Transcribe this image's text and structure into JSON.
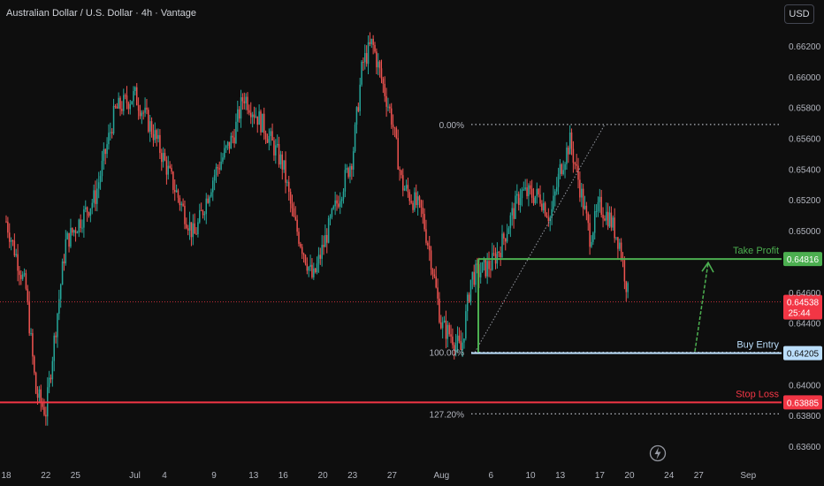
{
  "header": {
    "title": "Australian Dollar / U.S. Dollar · 4h · Vantage",
    "currency_label": "USD"
  },
  "colors": {
    "background": "#0e0e0e",
    "bull_candle": "#26a69a",
    "bear_candle": "#ef5350",
    "take_profit": "#4caf50",
    "stop_loss": "#f23645",
    "buy_entry": "#bbdefb",
    "current_price": "#f23645"
  },
  "chart_data": {
    "type": "candlestick",
    "ylim": [
      0.6353,
      0.6636
    ],
    "price_ticks": [
      "0.66200",
      "0.66000",
      "0.65800",
      "0.65600",
      "0.65400",
      "0.65200",
      "0.65000",
      "0.64600",
      "0.64400",
      "0.64000",
      "0.63800",
      "0.63600"
    ],
    "x_ticks": [
      "18",
      "22",
      "25",
      "Jul",
      "4",
      "9",
      "13",
      "16",
      "20",
      "23",
      "27",
      "Aug",
      "6",
      "10",
      "13",
      "17",
      "20",
      "24",
      "27",
      "Sep"
    ],
    "path_points": [
      [
        "Jun 18",
        0.6506
      ],
      [
        "Jun 20",
        0.6462
      ],
      [
        "Jun 21",
        0.6395
      ],
      [
        "Jun 22",
        0.6382
      ],
      [
        "Jun 24",
        0.6492
      ],
      [
        "Jun 27",
        0.6522
      ],
      [
        "Jun 29",
        0.6578
      ],
      [
        "Jul 1",
        0.6588
      ],
      [
        "Jul 3",
        0.6562
      ],
      [
        "Jul 5",
        0.6528
      ],
      [
        "Jul 7",
        0.6496
      ],
      [
        "Jul 9",
        0.6536
      ],
      [
        "Jul 11",
        0.6562
      ],
      [
        "Jul 12",
        0.6588
      ],
      [
        "Jul 14",
        0.6568
      ],
      [
        "Jul 16",
        0.6542
      ],
      [
        "Jul 17",
        0.6508
      ],
      [
        "Jul 19",
        0.6468
      ],
      [
        "Jul 21",
        0.651
      ],
      [
        "Jul 23",
        0.6548
      ],
      [
        "Jul 24",
        0.6608
      ],
      [
        "Jul 25",
        0.6622
      ],
      [
        "Jul 27",
        0.6572
      ],
      [
        "Jul 28",
        0.653
      ],
      [
        "Jul 30",
        0.6512
      ],
      [
        "Jul 31",
        0.648
      ],
      [
        "Aug 1",
        0.6438
      ],
      [
        "Aug 2",
        0.6432
      ],
      [
        "Aug 3",
        0.6422
      ],
      [
        "Aug 4",
        0.647
      ],
      [
        "Aug 6",
        0.6478
      ],
      [
        "Aug 7",
        0.649
      ],
      [
        "Aug 8",
        0.6508
      ],
      [
        "Aug 9",
        0.6525
      ],
      [
        "Aug 11",
        0.6522
      ],
      [
        "Aug 12",
        0.6508
      ],
      [
        "Aug 13",
        0.654
      ],
      [
        "Aug 14",
        0.6558
      ],
      [
        "Aug 15",
        0.6528
      ],
      [
        "Aug 16",
        0.6496
      ],
      [
        "Aug 17",
        0.6516
      ],
      [
        "Aug 18",
        0.6508
      ],
      [
        "Aug 19",
        0.6492
      ],
      [
        "Aug 20",
        0.6453
      ]
    ],
    "fibonacci": [
      {
        "label": "0.00%",
        "price": 0.6569
      },
      {
        "label": "100.00%",
        "price": 0.6421
      },
      {
        "label": "127.20%",
        "price": 0.6381
      }
    ],
    "levels": [
      {
        "label": "Take Profit",
        "price": 0.64816,
        "price_label": "0.64816"
      },
      {
        "label": "Buy Entry",
        "price": 0.64205,
        "price_label": "0.64205"
      },
      {
        "label": "Stop Loss",
        "price": 0.63885,
        "price_label": "0.63885"
      }
    ],
    "current_price": {
      "price": 0.64538,
      "price_label": "0.64538",
      "countdown": "25:44"
    },
    "annotation": "green arrow from Buy Entry up to Take Profit",
    "grid": false
  }
}
